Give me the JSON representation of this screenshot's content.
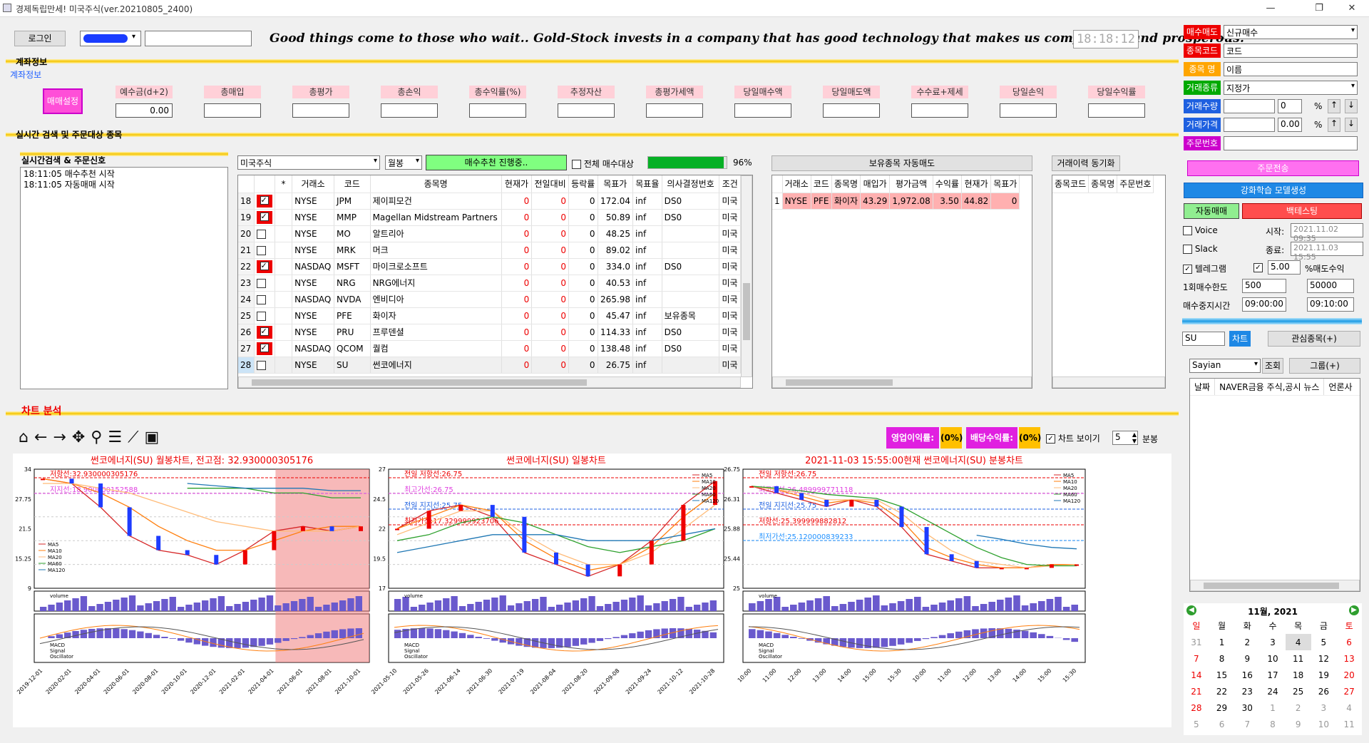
{
  "window": {
    "title": "경제독립만세! 미국주식(ver.20210805_2400)"
  },
  "top": {
    "login": "로그인",
    "banner": "Good things come to those who wait..  Gold-Stock invests in a company that has good technology that makes us comfortable and prosperous.",
    "clock": "18:18:12"
  },
  "account": {
    "section": "계좌정보",
    "sub": "계좌정보",
    "setting_btn": "매매설정",
    "fields": [
      {
        "label": "예수금(d+2)",
        "value": "0.00"
      },
      {
        "label": "총매입",
        "value": ""
      },
      {
        "label": "총평가",
        "value": ""
      },
      {
        "label": "총손익",
        "value": ""
      },
      {
        "label": "총수익률(%)",
        "value": ""
      },
      {
        "label": "추정자산",
        "value": ""
      },
      {
        "label": "총평가세액",
        "value": ""
      },
      {
        "label": "당일매수액",
        "value": ""
      },
      {
        "label": "당일매도액",
        "value": ""
      },
      {
        "label": "수수료+제세",
        "value": ""
      },
      {
        "label": "당일손익",
        "value": ""
      },
      {
        "label": "당일수익률",
        "value": ""
      }
    ]
  },
  "realtime": {
    "section": "실시간 검색 및 주문대상 종목",
    "log_title": "실시간검색 & 주문신호",
    "log": [
      "18:11:05 매수추천 시작",
      "18:11:05 자동매매 시작"
    ],
    "market": "미국주식",
    "period": "월봉",
    "progress_btn": "매수추천 진행중..",
    "all_buy": "전체 매수대상",
    "percent": "96%",
    "columns": [
      "",
      "",
      "*",
      "거래소",
      "코드",
      "종목명",
      "현재가",
      "전일대비",
      "등락률",
      "목표가",
      "목표율",
      "의사결정번호",
      "조건"
    ],
    "rows": [
      {
        "n": "18",
        "chk": true,
        "ex": "NYSE",
        "code": "JPM",
        "name": "제이피모건",
        "cur": "0",
        "diff": "0",
        "rate": "0",
        "target": "172.04",
        "trate": "inf",
        "dec": "DS0",
        "cond": "미국"
      },
      {
        "n": "19",
        "chk": true,
        "ex": "NYSE",
        "code": "MMP",
        "name": "Magellan Midstream Partners",
        "cur": "0",
        "diff": "0",
        "rate": "0",
        "target": "50.89",
        "trate": "inf",
        "dec": "DS0",
        "cond": "미국"
      },
      {
        "n": "20",
        "chk": false,
        "ex": "NYSE",
        "code": "MO",
        "name": "알트리아",
        "cur": "0",
        "diff": "0",
        "rate": "0",
        "target": "48.25",
        "trate": "inf",
        "dec": "",
        "cond": "미국"
      },
      {
        "n": "21",
        "chk": false,
        "ex": "NYSE",
        "code": "MRK",
        "name": "머크",
        "cur": "0",
        "diff": "0",
        "rate": "0",
        "target": "89.02",
        "trate": "inf",
        "dec": "",
        "cond": "미국"
      },
      {
        "n": "22",
        "chk": true,
        "ex": "NASDAQ",
        "code": "MSFT",
        "name": "마이크로소프트",
        "cur": "0",
        "diff": "0",
        "rate": "0",
        "target": "334.0",
        "trate": "inf",
        "dec": "DS0",
        "cond": "미국"
      },
      {
        "n": "23",
        "chk": false,
        "ex": "NYSE",
        "code": "NRG",
        "name": "NRG에너지",
        "cur": "0",
        "diff": "0",
        "rate": "0",
        "target": "40.53",
        "trate": "inf",
        "dec": "",
        "cond": "미국"
      },
      {
        "n": "24",
        "chk": false,
        "ex": "NASDAQ",
        "code": "NVDA",
        "name": "엔비디아",
        "cur": "0",
        "diff": "0",
        "rate": "0",
        "target": "265.98",
        "trate": "inf",
        "dec": "",
        "cond": "미국"
      },
      {
        "n": "25",
        "chk": false,
        "ex": "NYSE",
        "code": "PFE",
        "name": "화이자",
        "cur": "0",
        "diff": "0",
        "rate": "0",
        "target": "45.47",
        "trate": "inf",
        "dec": "보유종목",
        "cond": "미국"
      },
      {
        "n": "26",
        "chk": true,
        "ex": "NYSE",
        "code": "PRU",
        "name": "프루덴셜",
        "cur": "0",
        "diff": "0",
        "rate": "0",
        "target": "114.33",
        "trate": "inf",
        "dec": "DS0",
        "cond": "미국"
      },
      {
        "n": "27",
        "chk": true,
        "ex": "NASDAQ",
        "code": "QCOM",
        "name": "퀄컴",
        "cur": "0",
        "diff": "0",
        "rate": "0",
        "target": "138.48",
        "trate": "inf",
        "dec": "DS0",
        "cond": "미국"
      },
      {
        "n": "28",
        "chk": false,
        "ex": "NYSE",
        "code": "SU",
        "name": "썬코에너지",
        "cur": "0",
        "diff": "0",
        "rate": "0",
        "target": "26.75",
        "trate": "inf",
        "dec": "",
        "cond": "미국"
      }
    ]
  },
  "holdings": {
    "title": "보유종목 자동매도",
    "columns": [
      "",
      "거래소",
      "코드",
      "종목명",
      "매입가",
      "평가금액",
      "수익률",
      "현재가",
      "목표가"
    ],
    "rows": [
      {
        "n": "1",
        "ex": "NYSE",
        "code": "PFE",
        "name": "화이자",
        "buy": "43.29",
        "eval": "1,972.08",
        "rate": "3.50",
        "cur": "44.82",
        "target": "0"
      }
    ]
  },
  "history": {
    "title": "거래이력 동기화",
    "columns": [
      "종목코드",
      "종목명",
      "주문번호"
    ]
  },
  "chart_section": {
    "title": "차트 분석",
    "profit_label": "영업이익률:",
    "profit_val": "(0%)",
    "div_label": "배당수익률:",
    "div_val": "(0%)",
    "show_chart": "차트 보이기",
    "minutes": "5",
    "minute_unit": "분봉"
  },
  "chart_titles": [
    "썬코에너지(SU) 월봉차트, 전고점: 32.930000305176",
    "썬코에너지(SU) 일봉차트",
    "2021-11-03 15:55:00현재 썬코에너지(SU) 분봉차트"
  ],
  "chart_data": [
    {
      "type": "line",
      "title": "썬코에너지(SU) 월봉차트, 전고점: 32.930000305176",
      "ylim": [
        9,
        34
      ],
      "x": [
        "2019-12-01",
        "2020-02-01",
        "2020-04-01",
        "2020-06-01",
        "2020-08-01",
        "2020-10-01",
        "2020-12-01",
        "2021-02-01",
        "2021-04-01",
        "2021-06-01",
        "2021-08-01",
        "2021-10-01"
      ],
      "annotations": [
        "저항선:32.930000305176",
        "지지선:18.900000152588"
      ],
      "series": [
        {
          "name": "MA5",
          "values": [
            32,
            31,
            26,
            20,
            17,
            16,
            14,
            17,
            21,
            22,
            21,
            22
          ]
        },
        {
          "name": "MA10",
          "values": [
            32,
            31,
            29,
            26,
            22,
            19,
            17,
            17,
            19,
            21,
            22,
            22
          ]
        },
        {
          "name": "MA20",
          "values": [
            31,
            31,
            30,
            29,
            27,
            25,
            23,
            22,
            21,
            21,
            21,
            22
          ]
        },
        {
          "name": "MA60",
          "values": [
            null,
            null,
            null,
            null,
            null,
            30,
            30,
            30,
            29,
            29,
            28,
            28
          ]
        },
        {
          "name": "MA120",
          "values": [
            null,
            null,
            null,
            null,
            null,
            31,
            30.5,
            30,
            30,
            30,
            29.5,
            29.5
          ]
        }
      ],
      "volume_legend": "volume",
      "macd_legend": [
        "MACD",
        "Signal",
        "Oscillator"
      ]
    },
    {
      "type": "line",
      "title": "썬코에너지(SU) 일봉차트",
      "ylim": [
        17,
        27
      ],
      "x": [
        "2021-05-10",
        "2021-05-26",
        "2021-06-14",
        "2021-06-30",
        "2021-07-19",
        "2021-08-04",
        "2021-08-20",
        "2021-09-08",
        "2021-09-24",
        "2021-10-12",
        "2021-10-28"
      ],
      "annotations": [
        "전일 저항선:26.75",
        "최고가선:26.75",
        "전일 지지선:25.75",
        "최저가선:17.329999923706"
      ],
      "series": [
        {
          "name": "MA5",
          "values": [
            22,
            23.5,
            24,
            23,
            20,
            19,
            18,
            19,
            21,
            24,
            26
          ]
        },
        {
          "name": "MA10",
          "values": [
            22,
            23,
            24,
            23.5,
            21,
            19.5,
            18.5,
            19,
            20.5,
            23,
            25
          ]
        },
        {
          "name": "MA20",
          "values": [
            21.5,
            22.5,
            23.5,
            23.5,
            21.5,
            20,
            19,
            19,
            20,
            22,
            24
          ]
        },
        {
          "name": "MA60",
          "values": [
            21,
            21.5,
            22.5,
            23,
            22.5,
            21.5,
            20.5,
            20,
            20.5,
            21,
            22
          ]
        },
        {
          "name": "MA120",
          "values": [
            20,
            20.5,
            21,
            21.5,
            21.5,
            21.5,
            21,
            21,
            21,
            21.5,
            22
          ]
        }
      ],
      "volume_legend": "volume",
      "macd_legend": [
        "MACD",
        "Signal",
        "Oscillator"
      ]
    },
    {
      "type": "line",
      "title": "2021-11-03 15:55:00현재 썬코에너지(SU) 분봉차트",
      "ylim": [
        25,
        26.75
      ],
      "x": [
        "10:00",
        "11:00",
        "12:00",
        "13:00",
        "14:00",
        "15:00",
        "15:30",
        "10:00",
        "11:00",
        "12:00",
        "13:00",
        "14:00",
        "15:00",
        "15:30"
      ],
      "annotations": [
        "전일 저항선:26.75",
        "최고가선:26.489999771118",
        "전일 지지선:25.75",
        "저항선:25.399999882812",
        "최저가선:25.120000839233"
      ],
      "series": [
        {
          "name": "MA5",
          "values": [
            26.5,
            26.4,
            26.3,
            26.2,
            26.3,
            26.2,
            25.9,
            25.5,
            25.4,
            25.3,
            25.3,
            25.3,
            25.35,
            25.35
          ]
        },
        {
          "name": "MA10",
          "values": [
            26.5,
            26.45,
            26.35,
            26.25,
            26.3,
            26.25,
            26.0,
            25.6,
            25.45,
            25.35,
            25.3,
            25.3,
            25.35,
            25.35
          ]
        },
        {
          "name": "MA20",
          "values": [
            26.5,
            26.45,
            26.4,
            26.3,
            26.3,
            26.3,
            26.1,
            25.8,
            25.55,
            25.4,
            25.35,
            25.3,
            25.33,
            25.35
          ]
        },
        {
          "name": "MA60",
          "values": [
            26.5,
            26.47,
            26.43,
            26.38,
            26.35,
            26.32,
            26.2,
            26.0,
            25.8,
            25.6,
            25.45,
            25.35,
            25.33,
            25.33
          ]
        },
        {
          "name": "MA120",
          "values": [
            null,
            null,
            null,
            null,
            null,
            null,
            null,
            null,
            null,
            25.78,
            25.72,
            25.65,
            25.6,
            25.58
          ]
        }
      ],
      "volume_legend": "volume",
      "macd_legend": [
        "MACD",
        "Signal",
        "Oscillator"
      ]
    }
  ],
  "order": {
    "labels": [
      "매수매도",
      "종목코드",
      "종목 명",
      "거래종류",
      "거래수량",
      "거래가격",
      "주문번호"
    ],
    "values": [
      "신규매수",
      "코드",
      "이름",
      "지정가",
      "",
      "",
      ""
    ],
    "qty_pct": "0",
    "price_pct": "0.00",
    "pct": "%",
    "order_btn": "주문전송",
    "ml_btn": "강화학습 모델생성",
    "auto_btn": "자동매매",
    "backtest_btn": "백테스팅"
  },
  "settings": {
    "voice": "Voice",
    "slack": "Slack",
    "telegram": "텔레그램",
    "start_label": "시작:",
    "start_val": "2021.11.02 09:35",
    "end_label": "종료:",
    "end_val": "2021.11.03 15:55",
    "sell_pct": "5.00",
    "sell_pct_label": "%매도수익",
    "limit_label": "1회매수한도",
    "limit1": "500",
    "limit2": "50000",
    "stop_label": "매수중지시간",
    "stop1": "09:00:00",
    "stop2": "09:10:00"
  },
  "search": {
    "code": "SU",
    "chart_btn": "차트",
    "fav_btn": "관심종목(+)",
    "group": "Sayian",
    "lookup_btn": "조회",
    "group_btn": "그룹(+)",
    "news_cols": [
      "날짜",
      "NAVER금융 주식,공시 뉴스",
      "언론사"
    ]
  },
  "calendar": {
    "title": "11월,  2021",
    "days": [
      "일",
      "월",
      "화",
      "수",
      "목",
      "금",
      "토"
    ],
    "weeks": [
      [
        "31",
        "1",
        "2",
        "3",
        "4",
        "5",
        "6"
      ],
      [
        "7",
        "8",
        "9",
        "10",
        "11",
        "12",
        "13"
      ],
      [
        "14",
        "15",
        "16",
        "17",
        "18",
        "19",
        "20"
      ],
      [
        "21",
        "22",
        "23",
        "24",
        "25",
        "26",
        "27"
      ],
      [
        "28",
        "29",
        "30",
        "1",
        "2",
        "3",
        "4"
      ],
      [
        "5",
        "6",
        "7",
        "8",
        "9",
        "10",
        "11"
      ]
    ]
  }
}
